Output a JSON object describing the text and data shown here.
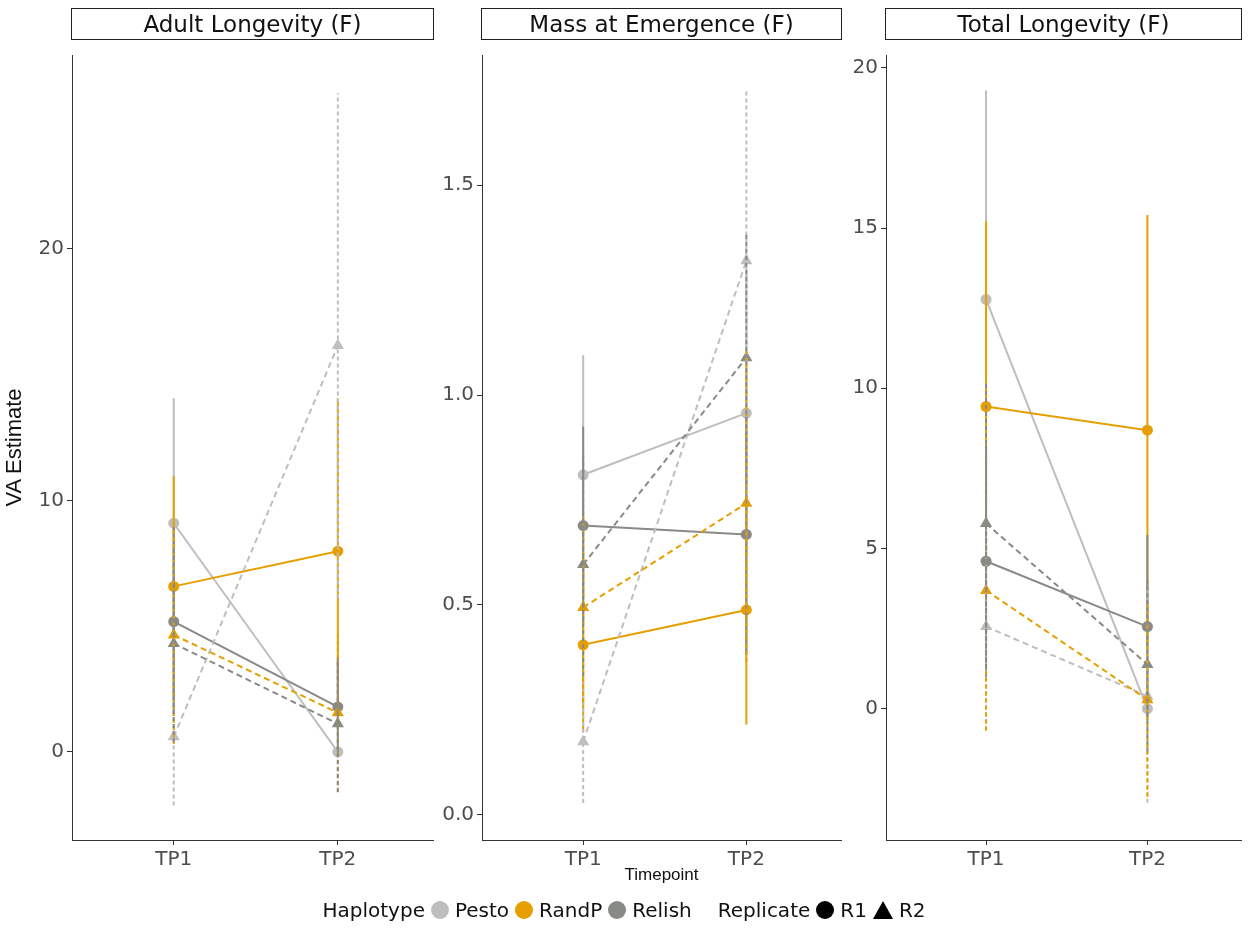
{
  "chart_data": [
    {
      "type": "line",
      "title": "Adult Longevity (F)",
      "ylabel": "VA Estimate",
      "categories": [
        "TP1",
        "TP2"
      ],
      "ylim": [
        -3.5,
        27.7
      ],
      "yticks": [
        0,
        10,
        20
      ],
      "grid": false,
      "legend": "bottom",
      "legend_title": "Haplotype",
      "annotations": [
        "Replicate",
        "R1",
        "R2"
      ],
      "series": [
        {
          "name": "Pesto",
          "color": "#bebebe",
          "marker": "circle",
          "line_style": "solid",
          "values": [
            9.09,
            0
          ],
          "errors": [
            [
              4.15,
              14.06
            ],
            null
          ]
        },
        {
          "name": "RandP",
          "color": "#e69f00",
          "marker": "circle",
          "line_style": "solid",
          "values": [
            6.58,
            7.98
          ],
          "errors": [
            [
              2.19,
              10.97
            ],
            [
              1.91,
              14.06
            ]
          ]
        },
        {
          "name": "Relish",
          "color": "#878a85",
          "marker": "circle",
          "line_style": "solid",
          "values": [
            5.18,
            1.79
          ],
          "errors": [
            [
              1.44,
              8.93
            ],
            [
              -0.14,
              3.75
            ]
          ]
        },
        {
          "color": "#bebebe",
          "marker": "triangle",
          "line_style": "dashed",
          "values": [
            0.6,
            16.15
          ],
          "errors": [
            [
              -2.13,
              3.19
            ],
            [
              6.1,
              26.18
            ]
          ]
        },
        {
          "color": "#e69f00",
          "marker": "triangle",
          "line_style": "dashed",
          "values": [
            4.65,
            1.56
          ],
          "errors": [
            [
              0.32,
              8.87
            ],
            [
              -1.58,
              4.65
            ]
          ]
        },
        {
          "color": "#878a85",
          "marker": "triangle",
          "line_style": "dashed",
          "values": [
            4.31,
            1.12
          ],
          "errors": [
            [
              0.4,
              8.08
            ],
            [
              -1.6,
              3.65
            ]
          ]
        }
      ]
    },
    {
      "type": "line",
      "title": "Mass at Emergence (F)",
      "xlabel": "Timepoint",
      "categories": [
        "TP1",
        "TP2"
      ],
      "ylim": [
        -0.06,
        1.81
      ],
      "yticks": [
        {
          "value": 0,
          "label": "0.0"
        },
        0.5,
        {
          "value": 1,
          "label": "1.0"
        },
        1.5
      ],
      "grid": false,
      "series": [
        {
          "name": "Pesto",
          "color": "#bebebe",
          "marker": "circle",
          "line_style": "solid",
          "values": [
            0.81,
            0.957
          ],
          "errors": [
            [
              0.524,
              1.095
            ],
            [
              0.618,
              1.296
            ]
          ]
        },
        {
          "name": "RandP",
          "color": "#e69f00",
          "marker": "circle",
          "line_style": "solid",
          "values": [
            0.405,
            0.488
          ],
          "errors": [
            [
              0.199,
              0.612
            ],
            [
              0.215,
              0.761
            ]
          ]
        },
        {
          "name": "Relish",
          "color": "#878a85",
          "marker": "circle",
          "line_style": "solid",
          "values": [
            0.689,
            0.668
          ],
          "errors": [
            [
              0.455,
              0.925
            ],
            [
              0.381,
              0.954
            ]
          ]
        },
        {
          "color": "#bebebe",
          "marker": "triangle",
          "line_style": "dashed",
          "values": [
            0.174,
            1.32
          ],
          "errors": [
            [
              0.028,
              0.315
            ],
            [
              0.913,
              1.724
            ]
          ]
        },
        {
          "color": "#e69f00",
          "marker": "triangle",
          "line_style": "dashed",
          "values": [
            0.494,
            0.742
          ],
          "errors": [
            [
              0.267,
              0.71
            ],
            [
              0.365,
              1.105
            ]
          ]
        },
        {
          "color": "#878a85",
          "marker": "triangle",
          "line_style": "dashed",
          "values": [
            0.596,
            1.089
          ],
          "errors": [
            [
              0.33,
              0.859
            ],
            [
              0.788,
              1.384
            ]
          ]
        }
      ]
    },
    {
      "type": "line",
      "title": "Total Longevity (F)",
      "categories": [
        "TP1",
        "TP2"
      ],
      "ylim": [
        -4.1,
        20.4
      ],
      "yticks": [
        0,
        5,
        10,
        15,
        20
      ],
      "grid": false,
      "series": [
        {
          "name": "Pesto",
          "color": "#bebebe",
          "marker": "circle",
          "line_style": "solid",
          "values": [
            12.77,
            0
          ],
          "errors": [
            [
              6.25,
              19.29
            ],
            null
          ]
        },
        {
          "name": "RandP",
          "color": "#e69f00",
          "marker": "circle",
          "line_style": "solid",
          "values": [
            9.43,
            8.69
          ],
          "errors": [
            [
              3.61,
              15.21
            ],
            [
              1.96,
              15.41
            ]
          ]
        },
        {
          "name": "Relish",
          "color": "#878a85",
          "marker": "circle",
          "line_style": "solid",
          "values": [
            4.6,
            2.56
          ],
          "errors": [
            [
              0.99,
              8.22
            ],
            [
              -0.35,
              5.42
            ]
          ]
        },
        {
          "color": "#bebebe",
          "marker": "triangle",
          "line_style": "dashed",
          "values": [
            2.56,
            0.39
          ],
          "errors": [
            [
              -0.66,
              5.7
            ],
            [
              -2.94,
              3.74
            ]
          ]
        },
        {
          "color": "#e69f00",
          "marker": "triangle",
          "line_style": "dashed",
          "values": [
            3.69,
            0.28
          ],
          "errors": [
            [
              -0.69,
              8.01
            ],
            [
              -2.75,
              3.24
            ]
          ]
        },
        {
          "color": "#878a85",
          "marker": "triangle",
          "line_style": "dashed",
          "values": [
            5.78,
            1.38
          ],
          "errors": [
            [
              1.27,
              10.23
            ],
            [
              -1.34,
              4.0
            ]
          ]
        }
      ]
    }
  ]
}
